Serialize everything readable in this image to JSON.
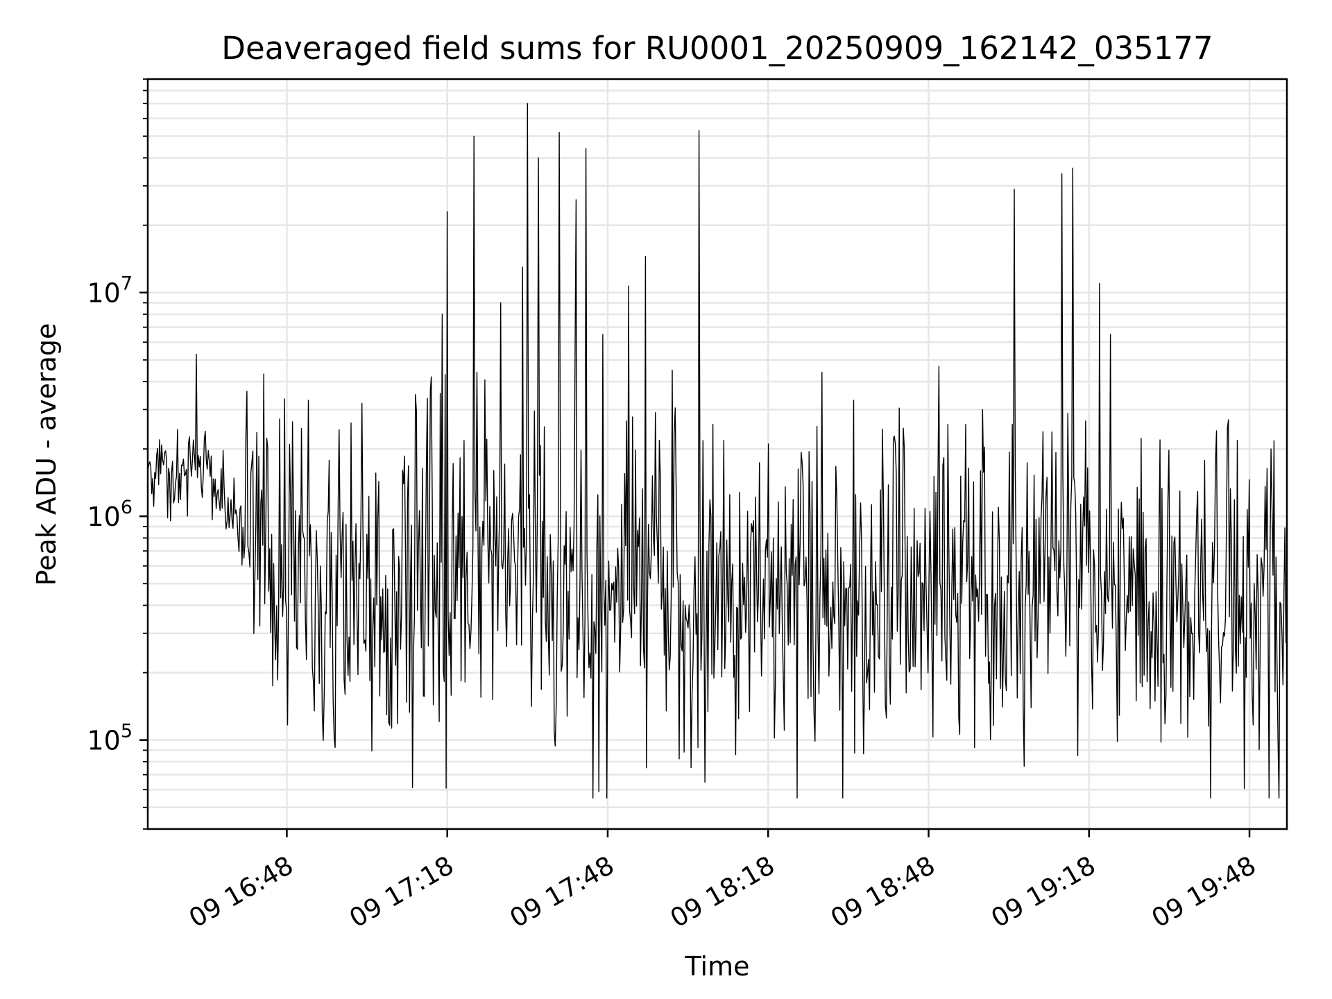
{
  "chart_data": {
    "type": "line",
    "title": "Deaveraged field sums for RU0001_20250909_162142_035177",
    "xlabel": "Time",
    "ylabel": "Peak ADU - average",
    "x_range": [
      "09 16:22",
      "09 19:55"
    ],
    "x_ticks": [
      "09 16:48",
      "09 17:18",
      "09 17:48",
      "09 18:18",
      "09 18:48",
      "09 19:18",
      "09 19:48"
    ],
    "y_scale": "log",
    "ylim": [
      40000,
      90000000
    ],
    "y_ticks": [
      {
        "value": 100000,
        "base": "10",
        "exp": "5"
      },
      {
        "value": 1000000,
        "base": "10",
        "exp": "6"
      },
      {
        "value": 10000000,
        "base": "10",
        "exp": "7"
      }
    ],
    "grid": true,
    "line_color": "#000000",
    "series": [
      {
        "x": [
          "09 16:22",
          "09 16:25",
          "09 16:28",
          "09 16:31",
          "09 16:34",
          "09 16:37",
          "09 16:40",
          "09 16:43",
          "09 16:46",
          "09 16:49",
          "09 16:52",
          "09 16:55",
          "09 16:58",
          "09 17:01",
          "09 17:04",
          "09 17:07",
          "09 17:10",
          "09 17:13",
          "09 17:16",
          "09 17:19",
          "09 17:22",
          "09 17:25",
          "09 17:28",
          "09 17:31",
          "09 17:34",
          "09 17:37",
          "09 17:40",
          "09 17:43",
          "09 17:46",
          "09 17:49",
          "09 17:52",
          "09 17:55",
          "09 17:58",
          "09 18:01",
          "09 18:04",
          "09 18:07",
          "09 18:10",
          "09 18:13",
          "09 18:16",
          "09 18:19",
          "09 18:22",
          "09 18:25",
          "09 18:28",
          "09 18:31",
          "09 18:34",
          "09 18:37",
          "09 18:40",
          "09 18:43",
          "09 18:46",
          "09 18:49",
          "09 18:52",
          "09 18:55",
          "09 18:58",
          "09 19:01",
          "09 19:04",
          "09 19:07",
          "09 19:10",
          "09 19:13",
          "09 19:16",
          "09 19:19",
          "09 19:22",
          "09 19:25",
          "09 19:28",
          "09 19:31",
          "09 19:34",
          "09 19:37",
          "09 19:40",
          "09 19:43",
          "09 19:46",
          "09 19:49",
          "09 19:52",
          "09 19:55"
        ],
        "y": [
          1600000,
          1700000,
          1500000,
          1800000,
          1400000,
          1200000,
          900000,
          800000,
          600000,
          500000,
          450000,
          400000,
          380000,
          420000,
          390000,
          350000,
          420000,
          480000,
          520000,
          600000,
          700000,
          650000,
          550000,
          600000,
          500000,
          420000,
          380000,
          350000,
          400000,
          450000,
          420000,
          480000,
          500000,
          450000,
          400000,
          420000,
          380000,
          350000,
          550000,
          500000,
          450000,
          420000,
          480000,
          400000,
          380000,
          350000,
          420000,
          460000,
          500000,
          450000,
          400000,
          420000,
          380000,
          360000,
          400000,
          450000,
          500000,
          550000,
          600000,
          480000,
          420000,
          380000,
          360000,
          350000,
          370000,
          400000,
          380000,
          350000,
          400000,
          330000,
          300000,
          310000
        ],
        "spikes": [
          {
            "x": "09 16:31",
            "y": 5300000
          },
          {
            "x": "09 16:52",
            "y": 3300000
          },
          {
            "x": "09 17:02",
            "y": 3200000
          },
          {
            "x": "09 17:12",
            "y": 3500000
          },
          {
            "x": "09 17:15",
            "y": 4200000
          },
          {
            "x": "09 17:17",
            "y": 8000000
          },
          {
            "x": "09 17:18",
            "y": 23000000
          },
          {
            "x": "09 17:23",
            "y": 50000000
          },
          {
            "x": "09 17:28",
            "y": 9000000
          },
          {
            "x": "09 17:32",
            "y": 13000000
          },
          {
            "x": "09 17:33",
            "y": 70000000
          },
          {
            "x": "09 17:35",
            "y": 40000000
          },
          {
            "x": "09 17:39",
            "y": 52000000
          },
          {
            "x": "09 17:42",
            "y": 26000000
          },
          {
            "x": "09 17:44",
            "y": 44000000
          },
          {
            "x": "09 17:47",
            "y": 6500000
          },
          {
            "x": "09 17:52",
            "y": 10700000
          },
          {
            "x": "09 17:55",
            "y": 14500000
          },
          {
            "x": "09 18:00",
            "y": 4500000
          },
          {
            "x": "09 18:05",
            "y": 53000000
          },
          {
            "x": "09 18:28",
            "y": 4400000
          },
          {
            "x": "09 18:34",
            "y": 3300000
          },
          {
            "x": "09 18:58",
            "y": 3000000
          },
          {
            "x": "09 19:04",
            "y": 29000000
          },
          {
            "x": "09 19:13",
            "y": 34000000
          },
          {
            "x": "09 19:15",
            "y": 36000000
          },
          {
            "x": "09 19:20",
            "y": 11000000
          },
          {
            "x": "09 19:22",
            "y": 6500000
          },
          {
            "x": "09 19:44",
            "y": 2700000
          },
          {
            "x": "09 19:52",
            "y": 2000000
          }
        ]
      }
    ]
  }
}
